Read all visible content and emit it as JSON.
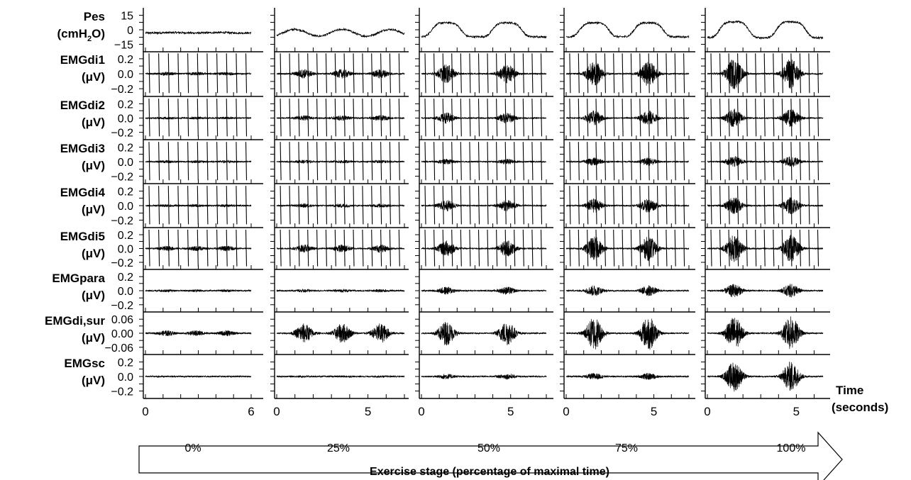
{
  "chart_data": {
    "type": "line",
    "rows": [
      {
        "label": "Pes",
        "unit": [
          "(cmH",
          "2",
          "O)"
        ],
        "ticks": [
          "15",
          "0",
          "−15"
        ],
        "ylim": [
          -22,
          22
        ],
        "kind": "pressure"
      },
      {
        "label": "EMGdi1",
        "unit": "(μV)",
        "ticks": [
          "0.2",
          "0.0",
          "−0.2"
        ],
        "ylim": [
          -0.3,
          0.3
        ],
        "kind": "emg",
        "burst": [
          0.015,
          0.055,
          0.12,
          0.16,
          0.2
        ],
        "spikes": true
      },
      {
        "label": "EMGdi2",
        "unit": "(μV)",
        "ticks": [
          "0.2",
          "0.0",
          "−0.2"
        ],
        "ylim": [
          -0.3,
          0.3
        ],
        "kind": "emg",
        "burst": [
          0.01,
          0.03,
          0.07,
          0.1,
          0.12
        ],
        "spikes": true
      },
      {
        "label": "EMGdi3",
        "unit": "(μV)",
        "ticks": [
          "0.2",
          "0.0",
          "−0.2"
        ],
        "ylim": [
          -0.3,
          0.3
        ],
        "kind": "emg",
        "burst": [
          0.01,
          0.015,
          0.03,
          0.05,
          0.07
        ],
        "spikes": true
      },
      {
        "label": "EMGdi4",
        "unit": "(μV)",
        "ticks": [
          "0.2",
          "0.0",
          "−0.2"
        ],
        "ylim": [
          -0.3,
          0.3
        ],
        "kind": "emg",
        "burst": [
          0.01,
          0.02,
          0.07,
          0.09,
          0.11
        ],
        "spikes": true
      },
      {
        "label": "EMGdi5",
        "unit": "(μV)",
        "ticks": [
          "0.2",
          "0.0",
          "−0.2"
        ],
        "ylim": [
          -0.3,
          0.3
        ],
        "kind": "emg",
        "burst": [
          0.03,
          0.05,
          0.11,
          0.17,
          0.19
        ],
        "spikes": true
      },
      {
        "label": "EMGpara",
        "unit": "(μV)",
        "ticks": [
          "0.2",
          "0.0",
          "−0.2"
        ],
        "ylim": [
          -0.3,
          0.3
        ],
        "kind": "emg",
        "burst": [
          0.01,
          0.015,
          0.05,
          0.07,
          0.09
        ],
        "spikes": false
      },
      {
        "label": "EMGdi,sur",
        "unit": "(μV)",
        "ticks": [
          "0.06",
          "0.00",
          "−0.06"
        ],
        "ylim": [
          -0.09,
          0.09
        ],
        "kind": "emg",
        "burst": [
          0.01,
          0.04,
          0.05,
          0.07,
          0.07
        ],
        "spikes": false
      },
      {
        "label": "EMGsc",
        "unit": "(μV)",
        "ticks": [
          "0.2",
          "0.0",
          "−0.2"
        ],
        "ylim": [
          -0.3,
          0.3
        ],
        "kind": "emg",
        "burst": [
          0.0,
          0.005,
          0.03,
          0.04,
          0.2
        ],
        "spikes": false
      }
    ],
    "columns": [
      {
        "stage": "0%",
        "xlim": [
          0,
          6
        ],
        "xticks": [
          0,
          6
        ],
        "breaths": [
          1.2,
          2.9,
          4.6
        ]
      },
      {
        "stage": "25%",
        "xlim": [
          0,
          7
        ],
        "xticks": [
          0,
          5
        ],
        "breaths": [
          1.5,
          3.6,
          5.7
        ]
      },
      {
        "stage": "50%",
        "xlim": [
          0,
          7
        ],
        "xticks": [
          0,
          5
        ],
        "breaths": [
          1.4,
          4.8
        ]
      },
      {
        "stage": "75%",
        "xlim": [
          0,
          7
        ],
        "xticks": [
          0,
          5
        ],
        "breaths": [
          1.6,
          4.7
        ]
      },
      {
        "stage": "100%",
        "xlim": [
          0,
          6.5
        ],
        "xticks": [
          0,
          5
        ],
        "breaths": [
          1.5,
          4.7
        ]
      }
    ],
    "xlabel": [
      "Time",
      "(seconds)"
    ],
    "arrow_label": "Exercise stage (percentage of maximal time)"
  }
}
